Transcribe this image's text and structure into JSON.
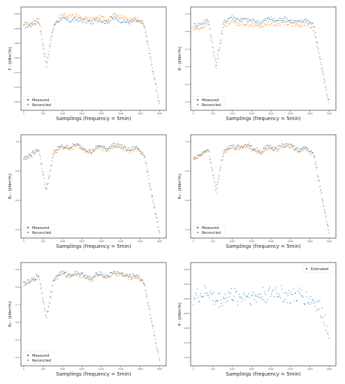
{
  "colors": {
    "measured": "#1f77b4",
    "reconciled": "#ff7f0e",
    "estimated": "#1f77b4"
  },
  "chart_data": [
    {
      "type": "scatter",
      "ylabel": "F - [kNm³/h]",
      "xlabel": "Samplings (frequency = 5min)",
      "xlim": [
        0,
        3600
      ],
      "ylim": [
        0.3,
        1.0
      ],
      "x_ticks": [
        "0",
        "500",
        "1000",
        "1500",
        "2000",
        "2500",
        "3000",
        "3500"
      ],
      "y_ticks": [
        "0.95",
        "0.90",
        "0.85",
        "0.80",
        "0.75",
        "0.70",
        "0.65"
      ],
      "legend": [
        "Measured",
        "Reconciled"
      ],
      "legend_position": "bottom-left",
      "grid": false,
      "series": [
        {
          "name": "Measured",
          "values": [
            0.88,
            0.89,
            0.92,
            0.6,
            0.89,
            0.94,
            0.92,
            0.93,
            0.92,
            0.91,
            0.93,
            0.91,
            0.94,
            0.92,
            0.91,
            0.92,
            0.89,
            0.6,
            0.33
          ]
        },
        {
          "name": "Reconciled",
          "values": [
            0.9,
            0.91,
            0.94,
            0.62,
            0.9,
            0.96,
            0.95,
            0.96,
            0.94,
            0.93,
            0.95,
            0.93,
            0.96,
            0.95,
            0.93,
            0.94,
            0.9,
            0.62,
            0.35
          ]
        }
      ]
    },
    {
      "type": "scatter",
      "ylabel": "R - [kNm³/h]",
      "xlabel": "Samplings (frequency = 5min)",
      "xlim": [
        0,
        3600
      ],
      "ylim": [
        0.3,
        1.0
      ],
      "x_ticks": [
        "0",
        "500",
        "1000",
        "1500",
        "2000",
        "2500",
        "3000",
        "3500"
      ],
      "y_ticks": [
        "0.9",
        "0.8",
        "0.7",
        "0.6",
        "0.5",
        "0.4"
      ],
      "legend": [
        "Measured",
        "Reconciled"
      ],
      "legend_position": "bottom-left",
      "grid": false,
      "series": [
        {
          "name": "Measured",
          "values": [
            0.89,
            0.9,
            0.93,
            0.6,
            0.91,
            0.95,
            0.93,
            0.93,
            0.92,
            0.91,
            0.94,
            0.92,
            0.94,
            0.92,
            0.91,
            0.93,
            0.89,
            0.61,
            0.34
          ]
        },
        {
          "name": "Reconciled",
          "values": [
            0.86,
            0.87,
            0.9,
            0.57,
            0.88,
            0.92,
            0.9,
            0.9,
            0.89,
            0.88,
            0.91,
            0.89,
            0.91,
            0.9,
            0.88,
            0.9,
            0.86,
            0.58,
            0.32
          ]
        }
      ]
    },
    {
      "type": "scatter",
      "ylabel": "R₁ - [kNm³/h]",
      "xlabel": "Samplings (frequency = 5min)",
      "xlim": [
        0,
        3600
      ],
      "ylim": [
        0.3,
        1.0
      ],
      "x_ticks": [
        "0",
        "500",
        "1000",
        "1500",
        "2000",
        "2500",
        "3000",
        "3500"
      ],
      "y_ticks": [
        "1.0",
        "0.8",
        "0.6",
        "0.4"
      ],
      "legend": [
        "Measured",
        "Reconciled"
      ],
      "legend_position": "bottom-left",
      "grid": false,
      "series": [
        {
          "name": "Measured",
          "values": [
            0.85,
            0.88,
            0.92,
            0.62,
            0.9,
            0.94,
            0.93,
            0.95,
            0.92,
            0.9,
            0.94,
            0.92,
            0.95,
            0.94,
            0.91,
            0.93,
            0.88,
            0.6,
            0.33
          ]
        },
        {
          "name": "Reconciled",
          "values": [
            0.84,
            0.87,
            0.91,
            0.61,
            0.89,
            0.93,
            0.92,
            0.94,
            0.91,
            0.89,
            0.93,
            0.91,
            0.94,
            0.93,
            0.9,
            0.92,
            0.87,
            0.59,
            0.32
          ]
        }
      ]
    },
    {
      "type": "scatter",
      "ylabel": "R₂ - [kNm³/h]",
      "xlabel": "Samplings (frequency = 5min)",
      "xlim": [
        0,
        3600
      ],
      "ylim": [
        0.3,
        1.0
      ],
      "x_ticks": [
        "0",
        "500",
        "1000",
        "1500",
        "2000",
        "2500",
        "3000",
        "3500"
      ],
      "y_ticks": [
        "1.0",
        "0.8",
        "0.6",
        "0.4"
      ],
      "legend": [
        "Measured",
        "Reconciled"
      ],
      "legend_position": "bottom-left",
      "grid": false,
      "series": [
        {
          "name": "Measured",
          "values": [
            0.85,
            0.88,
            0.92,
            0.62,
            0.9,
            0.94,
            0.93,
            0.95,
            0.92,
            0.9,
            0.94,
            0.92,
            0.95,
            0.94,
            0.91,
            0.93,
            0.88,
            0.6,
            0.33
          ]
        },
        {
          "name": "Reconciled",
          "values": [
            0.84,
            0.87,
            0.91,
            0.61,
            0.89,
            0.93,
            0.92,
            0.94,
            0.91,
            0.89,
            0.93,
            0.91,
            0.94,
            0.93,
            0.9,
            0.92,
            0.87,
            0.59,
            0.32
          ]
        }
      ]
    },
    {
      "type": "scatter",
      "ylabel": "R₃ - [kNm³/h]",
      "xlabel": "Samplings (frequency = 5min)",
      "xlim": [
        0,
        3600
      ],
      "ylim": [
        0.3,
        1.0
      ],
      "x_ticks": [
        "0",
        "500",
        "1000",
        "1500",
        "2000",
        "2500",
        "3000",
        "3500"
      ],
      "y_ticks": [
        "0.9",
        "0.8",
        "0.7",
        "0.6",
        "0.5",
        "0.4"
      ],
      "legend": [
        "Measured",
        "Reconciled"
      ],
      "legend_position": "bottom-left",
      "grid": false,
      "series": [
        {
          "name": "Measured",
          "values": [
            0.87,
            0.89,
            0.93,
            0.63,
            0.9,
            0.95,
            0.93,
            0.95,
            0.93,
            0.9,
            0.95,
            0.92,
            0.95,
            0.94,
            0.92,
            0.93,
            0.88,
            0.6,
            0.33
          ]
        },
        {
          "name": "Reconciled",
          "values": [
            0.86,
            0.88,
            0.92,
            0.62,
            0.89,
            0.94,
            0.92,
            0.94,
            0.92,
            0.89,
            0.94,
            0.91,
            0.94,
            0.93,
            0.91,
            0.92,
            0.87,
            0.59,
            0.32
          ]
        }
      ]
    },
    {
      "type": "scatter",
      "ylabel": "P - [kNm³/h]",
      "xlabel": "Samplings (frequency = 5min)",
      "xlim": [
        0,
        3600
      ],
      "ylim": [
        0.7,
        1.0
      ],
      "x_ticks": [
        "0",
        "500",
        "1000",
        "1500",
        "2000",
        "2500",
        "3000",
        "3500"
      ],
      "y_ticks": [
        "1.00",
        "0.95",
        "0.90",
        "0.85",
        "0.80",
        "0.75",
        "0.70"
      ],
      "legend": [
        "Estimated"
      ],
      "legend_position": "top-right",
      "grid": false,
      "series": [
        {
          "name": "Estimated",
          "values": [
            0.9,
            0.91,
            0.92,
            0.89,
            0.9,
            0.91,
            0.9,
            0.91,
            0.9,
            0.91,
            0.91,
            0.92,
            0.91,
            0.9,
            0.91,
            0.9,
            0.89,
            0.86,
            0.8
          ]
        }
      ]
    }
  ]
}
